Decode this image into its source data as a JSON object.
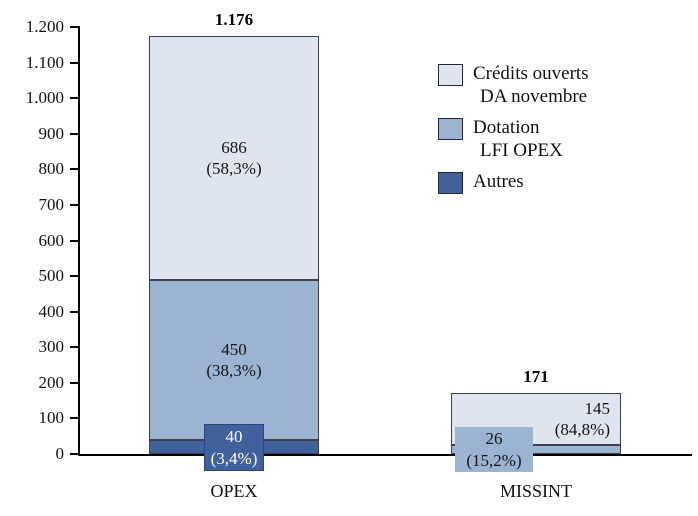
{
  "chart_data": {
    "type": "bar",
    "stacked": true,
    "ylim": [
      0,
      1200
    ],
    "grid": false,
    "legend_position": "upper-right",
    "y_ticks": [
      {
        "value": 0,
        "label": "0"
      },
      {
        "value": 100,
        "label": "100"
      },
      {
        "value": 200,
        "label": "200"
      },
      {
        "value": 300,
        "label": "300"
      },
      {
        "value": 400,
        "label": "400"
      },
      {
        "value": 500,
        "label": "500"
      },
      {
        "value": 600,
        "label": "600"
      },
      {
        "value": 700,
        "label": "700"
      },
      {
        "value": 800,
        "label": "800"
      },
      {
        "value": 900,
        "label": "900"
      },
      {
        "value": 1000,
        "label": "1.000"
      },
      {
        "value": 1100,
        "label": "1.100"
      },
      {
        "value": 1200,
        "label": "1.200"
      }
    ],
    "legend": [
      {
        "key": "credits",
        "label_lines": [
          "Crédits ouverts",
          "DA novembre"
        ],
        "color": "#dee5ee"
      },
      {
        "key": "dotation",
        "label_lines": [
          "Dotation",
          "LFI OPEX"
        ],
        "color": "#9ab4d2"
      },
      {
        "key": "autres",
        "label_lines": [
          "Autres"
        ],
        "color": "#41619c"
      }
    ],
    "categories": [
      {
        "name": "OPEX",
        "total": 1176,
        "total_label": "1.176",
        "segments": [
          {
            "series": "Autres",
            "value": 40,
            "label": "40",
            "pct_label": "(3,4%)",
            "color": "#41619c",
            "label_mode": "overflow-box-center",
            "text_color": "#ffffff"
          },
          {
            "series": "Dotation LFI OPEX",
            "value": 450,
            "label": "450",
            "pct_label": "(38,3%)",
            "color": "#9ab4d2",
            "label_mode": "inside-center",
            "text_color": "#141414"
          },
          {
            "series": "Crédits ouverts DA novembre",
            "value": 686,
            "label": "686",
            "pct_label": "(58,3%)",
            "color": "#dee5ee",
            "label_mode": "inside-center",
            "text_color": "#141414"
          }
        ]
      },
      {
        "name": "MISSINT",
        "total": 171,
        "total_label": "171",
        "segments": [
          {
            "series": "Dotation LFI OPEX",
            "value": 26,
            "label": "26",
            "pct_label": "(15,2%)",
            "color": "#9ab4d2",
            "label_mode": "overflow-box-left",
            "text_color": "#141414"
          },
          {
            "series": "Crédits ouverts DA novembre",
            "value": 145,
            "label": "145",
            "pct_label": "(84,8%)",
            "color": "#dee5ee",
            "label_mode": "inside-right",
            "text_color": "#141414"
          }
        ]
      }
    ]
  }
}
